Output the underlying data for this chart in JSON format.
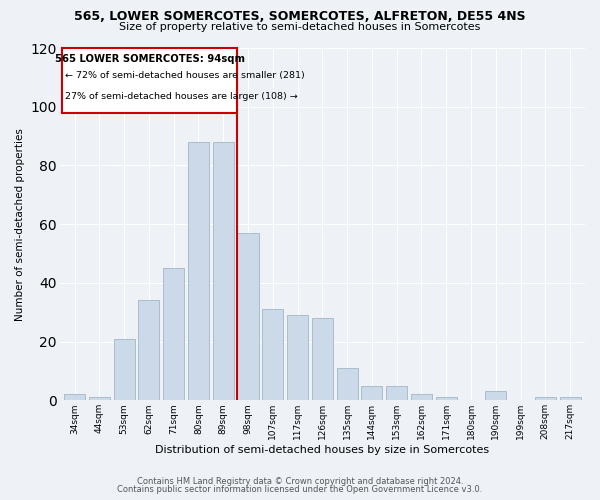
{
  "title1": "565, LOWER SOMERCOTES, SOMERCOTES, ALFRETON, DE55 4NS",
  "title2": "Size of property relative to semi-detached houses in Somercotes",
  "xlabel": "Distribution of semi-detached houses by size in Somercotes",
  "ylabel": "Number of semi-detached properties",
  "categories": [
    "34sqm",
    "44sqm",
    "53sqm",
    "62sqm",
    "71sqm",
    "80sqm",
    "89sqm",
    "98sqm",
    "107sqm",
    "117sqm",
    "126sqm",
    "135sqm",
    "144sqm",
    "153sqm",
    "162sqm",
    "171sqm",
    "180sqm",
    "190sqm",
    "199sqm",
    "208sqm",
    "217sqm"
  ],
  "values": [
    2,
    1,
    21,
    34,
    45,
    88,
    88,
    57,
    31,
    29,
    28,
    11,
    5,
    5,
    2,
    1,
    0,
    3,
    0,
    1,
    1
  ],
  "bar_color": "#ccd9e8",
  "bar_edge_color": "#a8becd",
  "vline_index": 7,
  "vline_label": "565 LOWER SOMERCOTES: 94sqm",
  "annotation_line1": "← 72% of semi-detached houses are smaller (281)",
  "annotation_line2": "27% of semi-detached houses are larger (108) →",
  "box_color": "#cc0000",
  "ylim": [
    0,
    120
  ],
  "yticks": [
    0,
    20,
    40,
    60,
    80,
    100,
    120
  ],
  "footnote1": "Contains HM Land Registry data © Crown copyright and database right 2024.",
  "footnote2": "Contains public sector information licensed under the Open Government Licence v3.0.",
  "bg_color": "#eef2f7"
}
